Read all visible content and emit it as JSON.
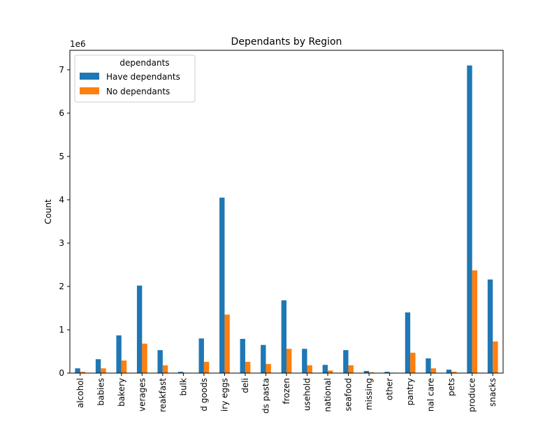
{
  "chart_data": {
    "type": "bar",
    "title": "Dependants by Region",
    "xlabel": "",
    "ylabel": "Count",
    "y_multiplier_label": "1e6",
    "ylim": [
      0,
      7.45
    ],
    "yticks": [
      0,
      1,
      2,
      3,
      4,
      5,
      6,
      7
    ],
    "grid": false,
    "legend": {
      "title": "dependants",
      "placement": "top-left"
    },
    "categories": [
      "alcohol",
      "babies",
      "bakery",
      "beverages",
      "breakfast",
      "bulk",
      "canned goods",
      "dairy eggs",
      "deli",
      "dry goods pasta",
      "frozen",
      "household",
      "international",
      "meat seafood",
      "missing",
      "other",
      "pantry",
      "personal care",
      "pets",
      "produce",
      "snacks"
    ],
    "tick_labels": [
      "alcohol",
      "babies",
      "bakery",
      "verages",
      "reakfast",
      "bulk",
      "d goods",
      "iry eggs",
      "deli",
      "ds pasta",
      "frozen",
      "usehold",
      "national",
      "seafood",
      "missing",
      "other",
      "pantry",
      "nal care",
      "pets",
      "produce",
      "snacks"
    ],
    "series": [
      {
        "name": "Have dependants",
        "color": "#1f77b4",
        "values": [
          0.11,
          0.32,
          0.87,
          2.02,
          0.53,
          0.03,
          0.8,
          4.05,
          0.79,
          0.65,
          1.68,
          0.56,
          0.19,
          0.53,
          0.05,
          0.03,
          1.4,
          0.34,
          0.08,
          7.1,
          2.16
        ]
      },
      {
        "name": "No dependants",
        "color": "#ff7f0e",
        "values": [
          0.03,
          0.11,
          0.29,
          0.68,
          0.18,
          0.01,
          0.26,
          1.35,
          0.26,
          0.21,
          0.56,
          0.18,
          0.06,
          0.18,
          0.02,
          0.01,
          0.47,
          0.11,
          0.03,
          2.37,
          0.73
        ]
      }
    ]
  }
}
